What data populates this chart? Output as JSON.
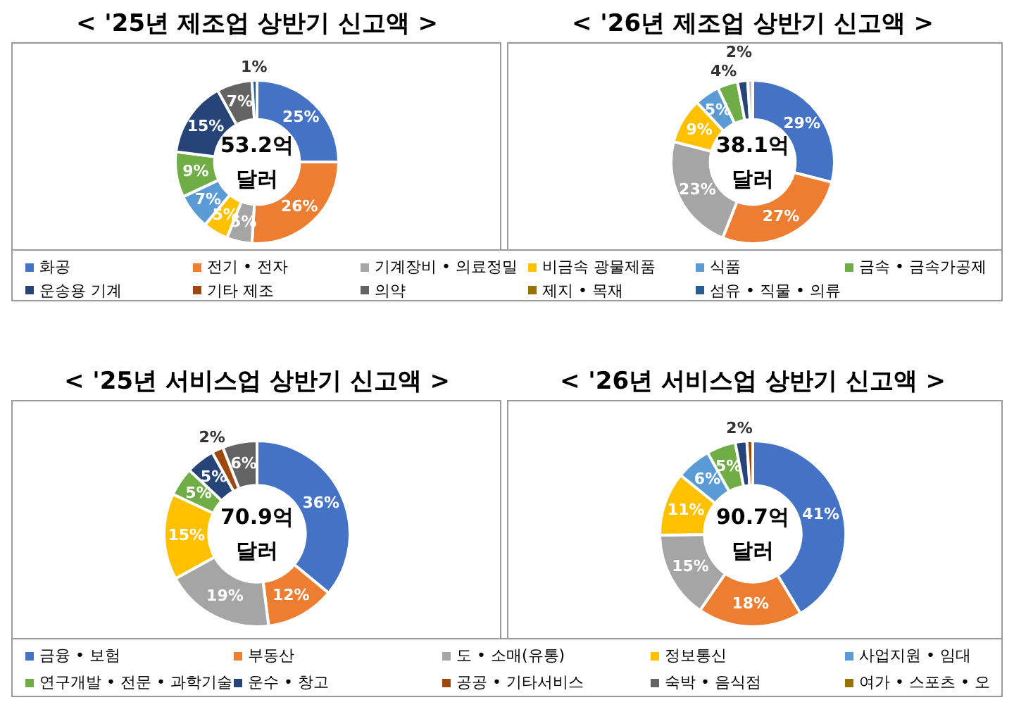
{
  "chart_data": [
    {
      "type": "donut",
      "title": "< '25년 제조업 상반기 신고액 >",
      "annotations": [
        "53.2억",
        "달러"
      ],
      "legend": "bottom",
      "categories": [
        "화공",
        "전기 • 전자",
        "기계장비 • 의료정밀",
        "비금속 광물제품",
        "식품",
        "금속 • 금속가공제",
        "운송용 기계",
        "기타 제조",
        "의약",
        "제지 • 목재",
        "섬유 • 직물 • 의류"
      ],
      "values": [
        25,
        26,
        5,
        5,
        7,
        9,
        15,
        null,
        7,
        null,
        1
      ],
      "colors": [
        "#4472c4",
        "#ed7d31",
        "#a5a5a5",
        "#ffc000",
        "#5b9bd5",
        "#70ad47",
        "#264478",
        "#9e480e",
        "#636363",
        "#997300",
        "#255e91"
      ],
      "value_labels": [
        "25%",
        "26%",
        "5%",
        "5%",
        "7%",
        "9%",
        "15%",
        null,
        "7%",
        null,
        "1%"
      ]
    },
    {
      "type": "donut",
      "title": "< '26년 제조업 상반기 신고액 >",
      "annotations": [
        "38.1억",
        "달러"
      ],
      "categories": [
        null,
        null,
        null,
        null,
        null,
        null,
        null,
        null,
        null,
        null,
        null
      ],
      "values": [
        29,
        27,
        23,
        9,
        5,
        4,
        2,
        null,
        1,
        null,
        null
      ],
      "colors": [
        "#4472c4",
        "#ed7d31",
        "#a5a5a5",
        "#ffc000",
        "#5b9bd5",
        "#70ad47",
        "#264478",
        "#9e480e",
        "#c9c0bb",
        "#997300",
        "#255e91"
      ],
      "value_labels": [
        "29%",
        "27%",
        "23%",
        "9%",
        "5%",
        "4%",
        "2%",
        null,
        null,
        null,
        null
      ]
    },
    {
      "type": "donut",
      "title": "< '25년 서비스업 상반기 신고액 >",
      "annotations": [
        "70.9억",
        "달러"
      ],
      "legend": "bottom",
      "categories": [
        "금융 • 보험",
        "부동산",
        "도 • 소매(유통)",
        "정보통신",
        "사업지원 • 임대",
        "연구개발 • 전문 • 과학기술",
        "운수 • 창고",
        "공공 • 기타서비스",
        "숙박 • 음식점",
        "여가 • 스포츠 • 오"
      ],
      "values": [
        36,
        12,
        19,
        15,
        null,
        5,
        5,
        2,
        6,
        null
      ],
      "colors": [
        "#4472c4",
        "#ed7d31",
        "#a5a5a5",
        "#ffc000",
        "#5b9bd5",
        "#70ad47",
        "#264478",
        "#9e480e",
        "#636363",
        "#997300"
      ],
      "value_labels": [
        "36%",
        "12%",
        "19%",
        "15%",
        null,
        "5%",
        "5%",
        "2%",
        "6%",
        null
      ]
    },
    {
      "type": "donut",
      "title": "< '26년 서비스업 상반기 신고액 >",
      "annotations": [
        "90.7억",
        "달러"
      ],
      "categories": [
        null,
        null,
        null,
        null,
        null,
        null,
        null,
        null,
        null,
        null
      ],
      "values": [
        41,
        18,
        15,
        11,
        6,
        5,
        2,
        1,
        null,
        null
      ],
      "colors": [
        "#4472c4",
        "#ed7d31",
        "#a5a5a5",
        "#ffc000",
        "#5b9bd5",
        "#70ad47",
        "#264478",
        "#9e480e",
        "#636363",
        "#997300"
      ],
      "value_labels": [
        "41%",
        "18%",
        "15%",
        "11%",
        "6%",
        "5%",
        "2%",
        null,
        null,
        null
      ]
    }
  ]
}
